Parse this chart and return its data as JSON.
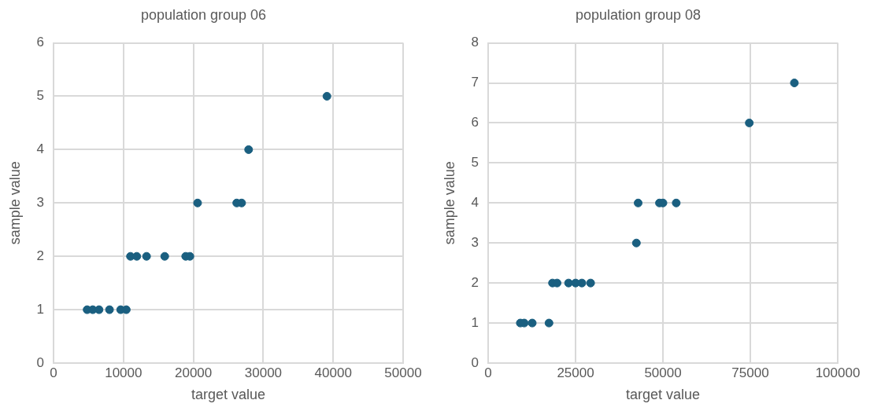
{
  "chart_data": [
    {
      "type": "scatter",
      "title": "population group 06",
      "xlabel": "target value",
      "ylabel": "sample value",
      "marker": "circle",
      "grid": true,
      "legend": false,
      "xlim": [
        0,
        50000
      ],
      "xticks": [
        0,
        10000,
        20000,
        30000,
        40000,
        50000
      ],
      "ylim": [
        0,
        6
      ],
      "yticks": [
        0,
        1,
        2,
        3,
        4,
        5,
        6
      ],
      "series": [
        {
          "color": "#1a5f80",
          "x": [
            4800,
            5600,
            6500,
            8000,
            9600,
            10400,
            11000,
            11900,
            13300,
            15900,
            18900,
            19500,
            20600,
            26200,
            26900,
            27900,
            39100
          ],
          "values": [
            1,
            1,
            1,
            1,
            1,
            1,
            2,
            2,
            2,
            2,
            2,
            2,
            3,
            3,
            3,
            4,
            5
          ]
        }
      ]
    },
    {
      "type": "scatter",
      "title": "population group 08",
      "xlabel": "target value",
      "ylabel": "sample value",
      "marker": "circle",
      "grid": true,
      "legend": false,
      "xlim": [
        0,
        100000
      ],
      "xticks": [
        0,
        25000,
        50000,
        75000,
        100000
      ],
      "ylim": [
        0,
        8
      ],
      "yticks": [
        0,
        1,
        2,
        3,
        4,
        5,
        6,
        7,
        8
      ],
      "series": [
        {
          "color": "#1a5f80",
          "x": [
            9200,
            10300,
            12600,
            17400,
            18400,
            19700,
            23000,
            25000,
            26800,
            29300,
            42400,
            42900,
            49000,
            50000,
            53800,
            74700,
            87600
          ],
          "values": [
            1,
            1,
            1,
            1,
            2,
            2,
            2,
            2,
            2,
            2,
            3,
            4,
            4,
            4,
            4,
            6,
            7
          ]
        }
      ]
    }
  ]
}
